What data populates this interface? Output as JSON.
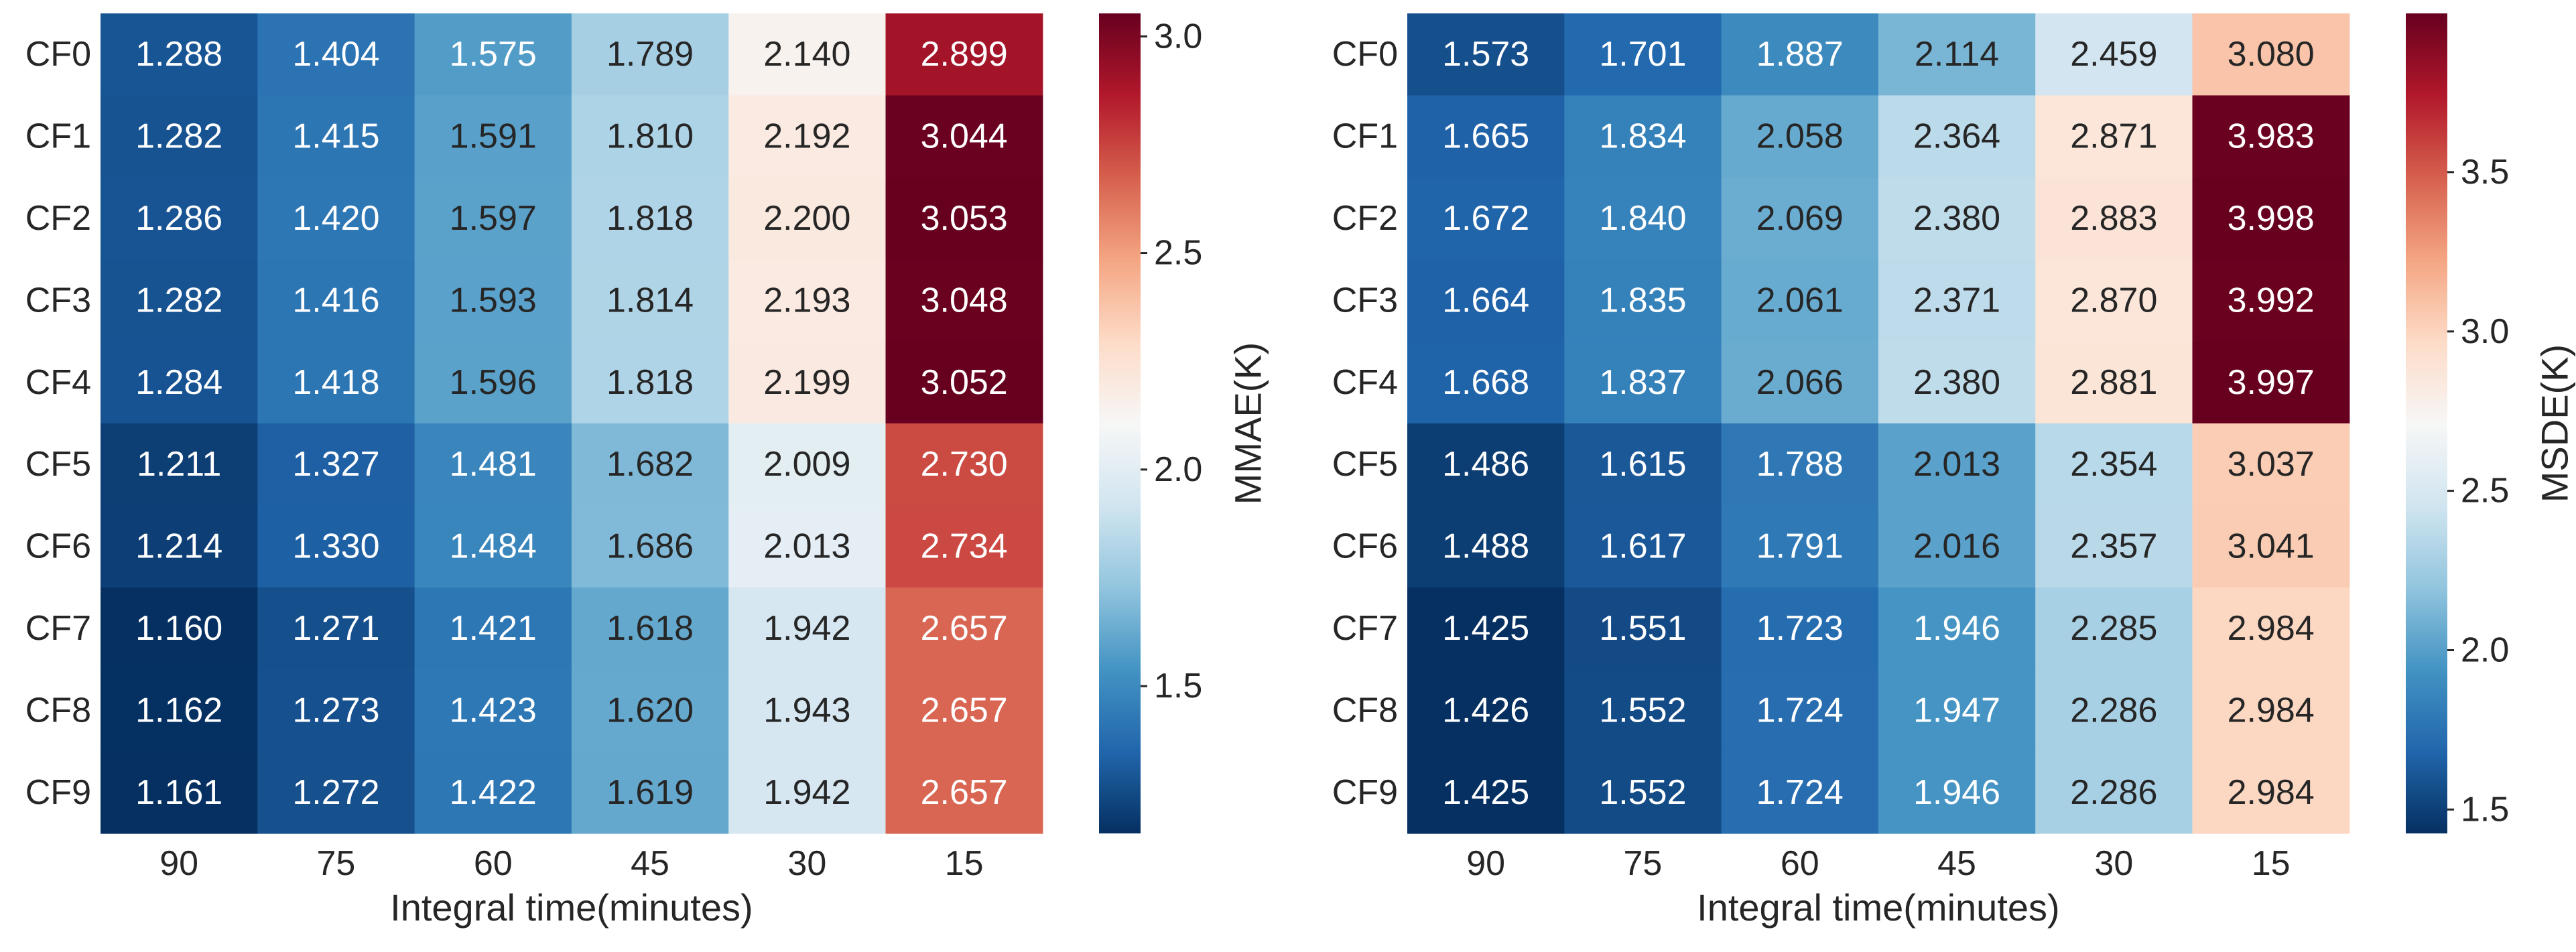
{
  "chart_data": [
    {
      "type": "heatmap",
      "title": "",
      "xlabel": "Integral time(minutes)",
      "ylabel": "",
      "colorbar_label": "MMAE(K)",
      "x_categories": [
        "90",
        "75",
        "60",
        "45",
        "30",
        "15"
      ],
      "y_categories": [
        "CF0",
        "CF1",
        "CF2",
        "CF3",
        "CF4",
        "CF5",
        "CF6",
        "CF7",
        "CF8",
        "CF9"
      ],
      "values": [
        [
          1.288,
          1.404,
          1.575,
          1.789,
          2.14,
          2.899
        ],
        [
          1.282,
          1.415,
          1.591,
          1.81,
          2.192,
          3.044
        ],
        [
          1.286,
          1.42,
          1.597,
          1.818,
          2.2,
          3.053
        ],
        [
          1.282,
          1.416,
          1.593,
          1.814,
          2.193,
          3.048
        ],
        [
          1.284,
          1.418,
          1.596,
          1.818,
          2.199,
          3.052
        ],
        [
          1.211,
          1.327,
          1.481,
          1.682,
          2.009,
          2.73
        ],
        [
          1.214,
          1.33,
          1.484,
          1.686,
          2.013,
          2.734
        ],
        [
          1.16,
          1.271,
          1.421,
          1.618,
          1.942,
          2.657
        ],
        [
          1.162,
          1.273,
          1.423,
          1.62,
          1.943,
          2.657
        ],
        [
          1.161,
          1.272,
          1.422,
          1.619,
          1.942,
          2.657
        ]
      ],
      "value_labels": [
        [
          "1.288",
          "1.404",
          "1.575",
          "1.789",
          "2.140",
          "2.899"
        ],
        [
          "1.282",
          "1.415",
          "1.591",
          "1.810",
          "2.192",
          "3.044"
        ],
        [
          "1.286",
          "1.420",
          "1.597",
          "1.818",
          "2.200",
          "3.053"
        ],
        [
          "1.282",
          "1.416",
          "1.593",
          "1.814",
          "2.193",
          "3.048"
        ],
        [
          "1.284",
          "1.418",
          "1.596",
          "1.818",
          "2.199",
          "3.052"
        ],
        [
          "1.211",
          "1.327",
          "1.481",
          "1.682",
          "2.009",
          "2.730"
        ],
        [
          "1.214",
          "1.330",
          "1.484",
          "1.686",
          "2.013",
          "2.734"
        ],
        [
          "1.160",
          "1.271",
          "1.421",
          "1.618",
          "1.942",
          "2.657"
        ],
        [
          "1.162",
          "1.273",
          "1.423",
          "1.620",
          "1.943",
          "2.657"
        ],
        [
          "1.161",
          "1.272",
          "1.422",
          "1.619",
          "1.942",
          "2.657"
        ]
      ],
      "vmin": 1.16,
      "vmax": 3.053,
      "colorbar_ticks": [
        1.5,
        2.0,
        2.5,
        3.0
      ],
      "colorbar_tick_labels": [
        "1.5",
        "2.0",
        "2.5",
        "3.0"
      ],
      "colormap": "RdBu_r"
    },
    {
      "type": "heatmap",
      "title": "",
      "xlabel": "Integral time(minutes)",
      "ylabel": "",
      "colorbar_label": "MSDE(K)",
      "x_categories": [
        "90",
        "75",
        "60",
        "45",
        "30",
        "15"
      ],
      "y_categories": [
        "CF0",
        "CF1",
        "CF2",
        "CF3",
        "CF4",
        "CF5",
        "CF6",
        "CF7",
        "CF8",
        "CF9"
      ],
      "values": [
        [
          1.573,
          1.701,
          1.887,
          2.114,
          2.459,
          3.08
        ],
        [
          1.665,
          1.834,
          2.058,
          2.364,
          2.871,
          3.983
        ],
        [
          1.672,
          1.84,
          2.069,
          2.38,
          2.883,
          3.998
        ],
        [
          1.664,
          1.835,
          2.061,
          2.371,
          2.87,
          3.992
        ],
        [
          1.668,
          1.837,
          2.066,
          2.38,
          2.881,
          3.997
        ],
        [
          1.486,
          1.615,
          1.788,
          2.013,
          2.354,
          3.037
        ],
        [
          1.488,
          1.617,
          1.791,
          2.016,
          2.357,
          3.041
        ],
        [
          1.425,
          1.551,
          1.723,
          1.946,
          2.285,
          2.984
        ],
        [
          1.426,
          1.552,
          1.724,
          1.947,
          2.286,
          2.984
        ],
        [
          1.425,
          1.552,
          1.724,
          1.946,
          2.286,
          2.984
        ]
      ],
      "value_labels": [
        [
          "1.573",
          "1.701",
          "1.887",
          "2.114",
          "2.459",
          "3.080"
        ],
        [
          "1.665",
          "1.834",
          "2.058",
          "2.364",
          "2.871",
          "3.983"
        ],
        [
          "1.672",
          "1.840",
          "2.069",
          "2.380",
          "2.883",
          "3.998"
        ],
        [
          "1.664",
          "1.835",
          "2.061",
          "2.371",
          "2.870",
          "3.992"
        ],
        [
          "1.668",
          "1.837",
          "2.066",
          "2.380",
          "2.881",
          "3.997"
        ],
        [
          "1.486",
          "1.615",
          "1.788",
          "2.013",
          "2.354",
          "3.037"
        ],
        [
          "1.488",
          "1.617",
          "1.791",
          "2.016",
          "2.357",
          "3.041"
        ],
        [
          "1.425",
          "1.551",
          "1.723",
          "1.946",
          "2.285",
          "2.984"
        ],
        [
          "1.426",
          "1.552",
          "1.724",
          "1.947",
          "2.286",
          "2.984"
        ],
        [
          "1.425",
          "1.552",
          "1.724",
          "1.946",
          "2.286",
          "2.984"
        ]
      ],
      "vmin": 1.425,
      "vmax": 3.998,
      "colorbar_ticks": [
        1.5,
        2.0,
        2.5,
        3.0,
        3.5
      ],
      "colorbar_tick_labels": [
        "1.5",
        "2.0",
        "2.5",
        "3.0",
        "3.5"
      ],
      "colormap": "RdBu_r"
    }
  ],
  "colormap_stops": [
    "#053061",
    "#2166ac",
    "#4393c3",
    "#92c5de",
    "#d1e5f0",
    "#f7f7f7",
    "#fddbc7",
    "#f4a582",
    "#d6604d",
    "#b2182b",
    "#67001f"
  ],
  "text_dark": "#262626",
  "text_light": "#ffffff"
}
